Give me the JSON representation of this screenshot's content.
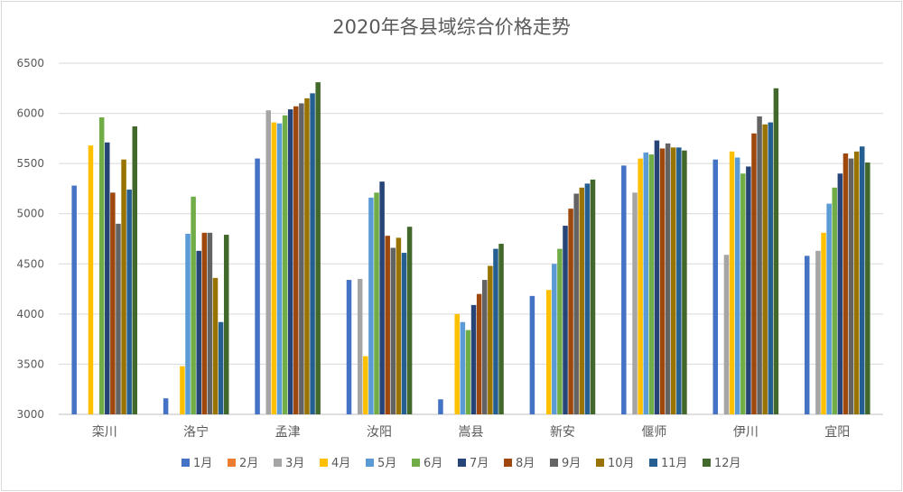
{
  "chart_data": {
    "type": "bar",
    "title": "2020年各县域综合价格走势",
    "xlabel": "",
    "ylabel": "",
    "ylim": [
      3000,
      6500
    ],
    "yticks": [
      3000,
      3500,
      4000,
      4500,
      5000,
      5500,
      6000,
      6500
    ],
    "grid": true,
    "legend": "bottom",
    "categories": [
      "栾川",
      "洛宁",
      "孟津",
      "汝阳",
      "嵩县",
      "新安",
      "偃师",
      "伊川",
      "宜阳"
    ],
    "series": [
      {
        "name": "1月",
        "color": "#4472C4",
        "values": [
          5280,
          3160,
          5550,
          4340,
          3150,
          4180,
          5480,
          5540,
          4580
        ]
      },
      {
        "name": "2月",
        "color": "#ED7D31",
        "values": [
          null,
          null,
          null,
          null,
          null,
          null,
          null,
          null,
          null
        ]
      },
      {
        "name": "3月",
        "color": "#A5A5A5",
        "values": [
          null,
          null,
          6030,
          4350,
          null,
          null,
          5210,
          4590,
          4630
        ]
      },
      {
        "name": "4月",
        "color": "#FFC000",
        "values": [
          5680,
          3480,
          5910,
          3580,
          4000,
          4240,
          5550,
          5620,
          4810
        ]
      },
      {
        "name": "5月",
        "color": "#5B9BD5",
        "values": [
          null,
          4800,
          5900,
          5160,
          3920,
          4500,
          5610,
          5560,
          5100
        ]
      },
      {
        "name": "6月",
        "color": "#70AD47",
        "values": [
          5960,
          5170,
          5980,
          5210,
          3840,
          4650,
          5590,
          5400,
          5260
        ]
      },
      {
        "name": "7月",
        "color": "#264478",
        "values": [
          5710,
          4630,
          6040,
          5320,
          4090,
          4880,
          5730,
          5470,
          5400
        ]
      },
      {
        "name": "8月",
        "color": "#9E480E",
        "values": [
          5210,
          4810,
          6070,
          4780,
          4200,
          5050,
          5650,
          5800,
          5600
        ]
      },
      {
        "name": "9月",
        "color": "#636363",
        "values": [
          4900,
          4810,
          6100,
          4660,
          4340,
          5200,
          5700,
          5970,
          5550
        ]
      },
      {
        "name": "10月",
        "color": "#997300",
        "values": [
          5540,
          4360,
          6150,
          4760,
          4480,
          5260,
          5660,
          5890,
          5620
        ]
      },
      {
        "name": "11月",
        "color": "#255E91",
        "values": [
          5240,
          3920,
          6200,
          4610,
          4650,
          5300,
          5660,
          5910,
          5670
        ]
      },
      {
        "name": "12月",
        "color": "#43682B",
        "values": [
          5870,
          4790,
          6310,
          4870,
          4700,
          5340,
          5630,
          6250,
          5510
        ]
      }
    ]
  }
}
